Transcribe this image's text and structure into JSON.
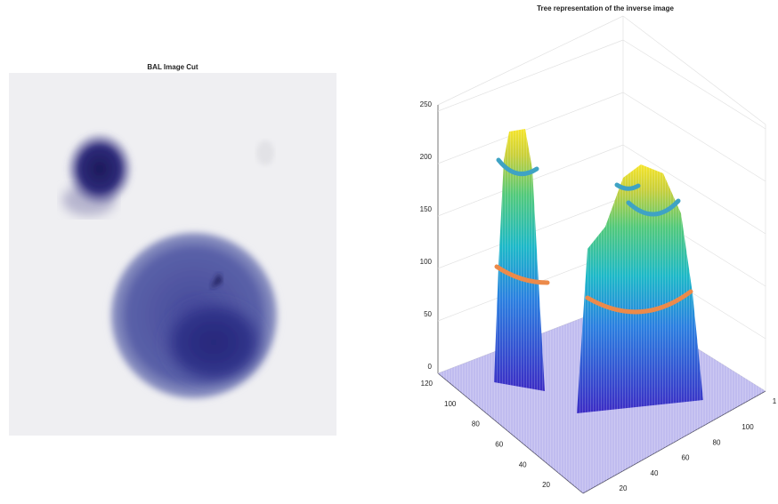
{
  "left_panel": {
    "title": "BAL Image Cut"
  },
  "right_panel": {
    "title": "Tree representation of the inverse image",
    "z_ticks": [
      "0",
      "50",
      "100",
      "150",
      "200",
      "250"
    ],
    "y_ticks": [
      "120",
      "100",
      "80",
      "60",
      "40",
      "20"
    ],
    "x_ticks": [
      "20",
      "40",
      "60",
      "80",
      "100",
      "1"
    ]
  }
}
